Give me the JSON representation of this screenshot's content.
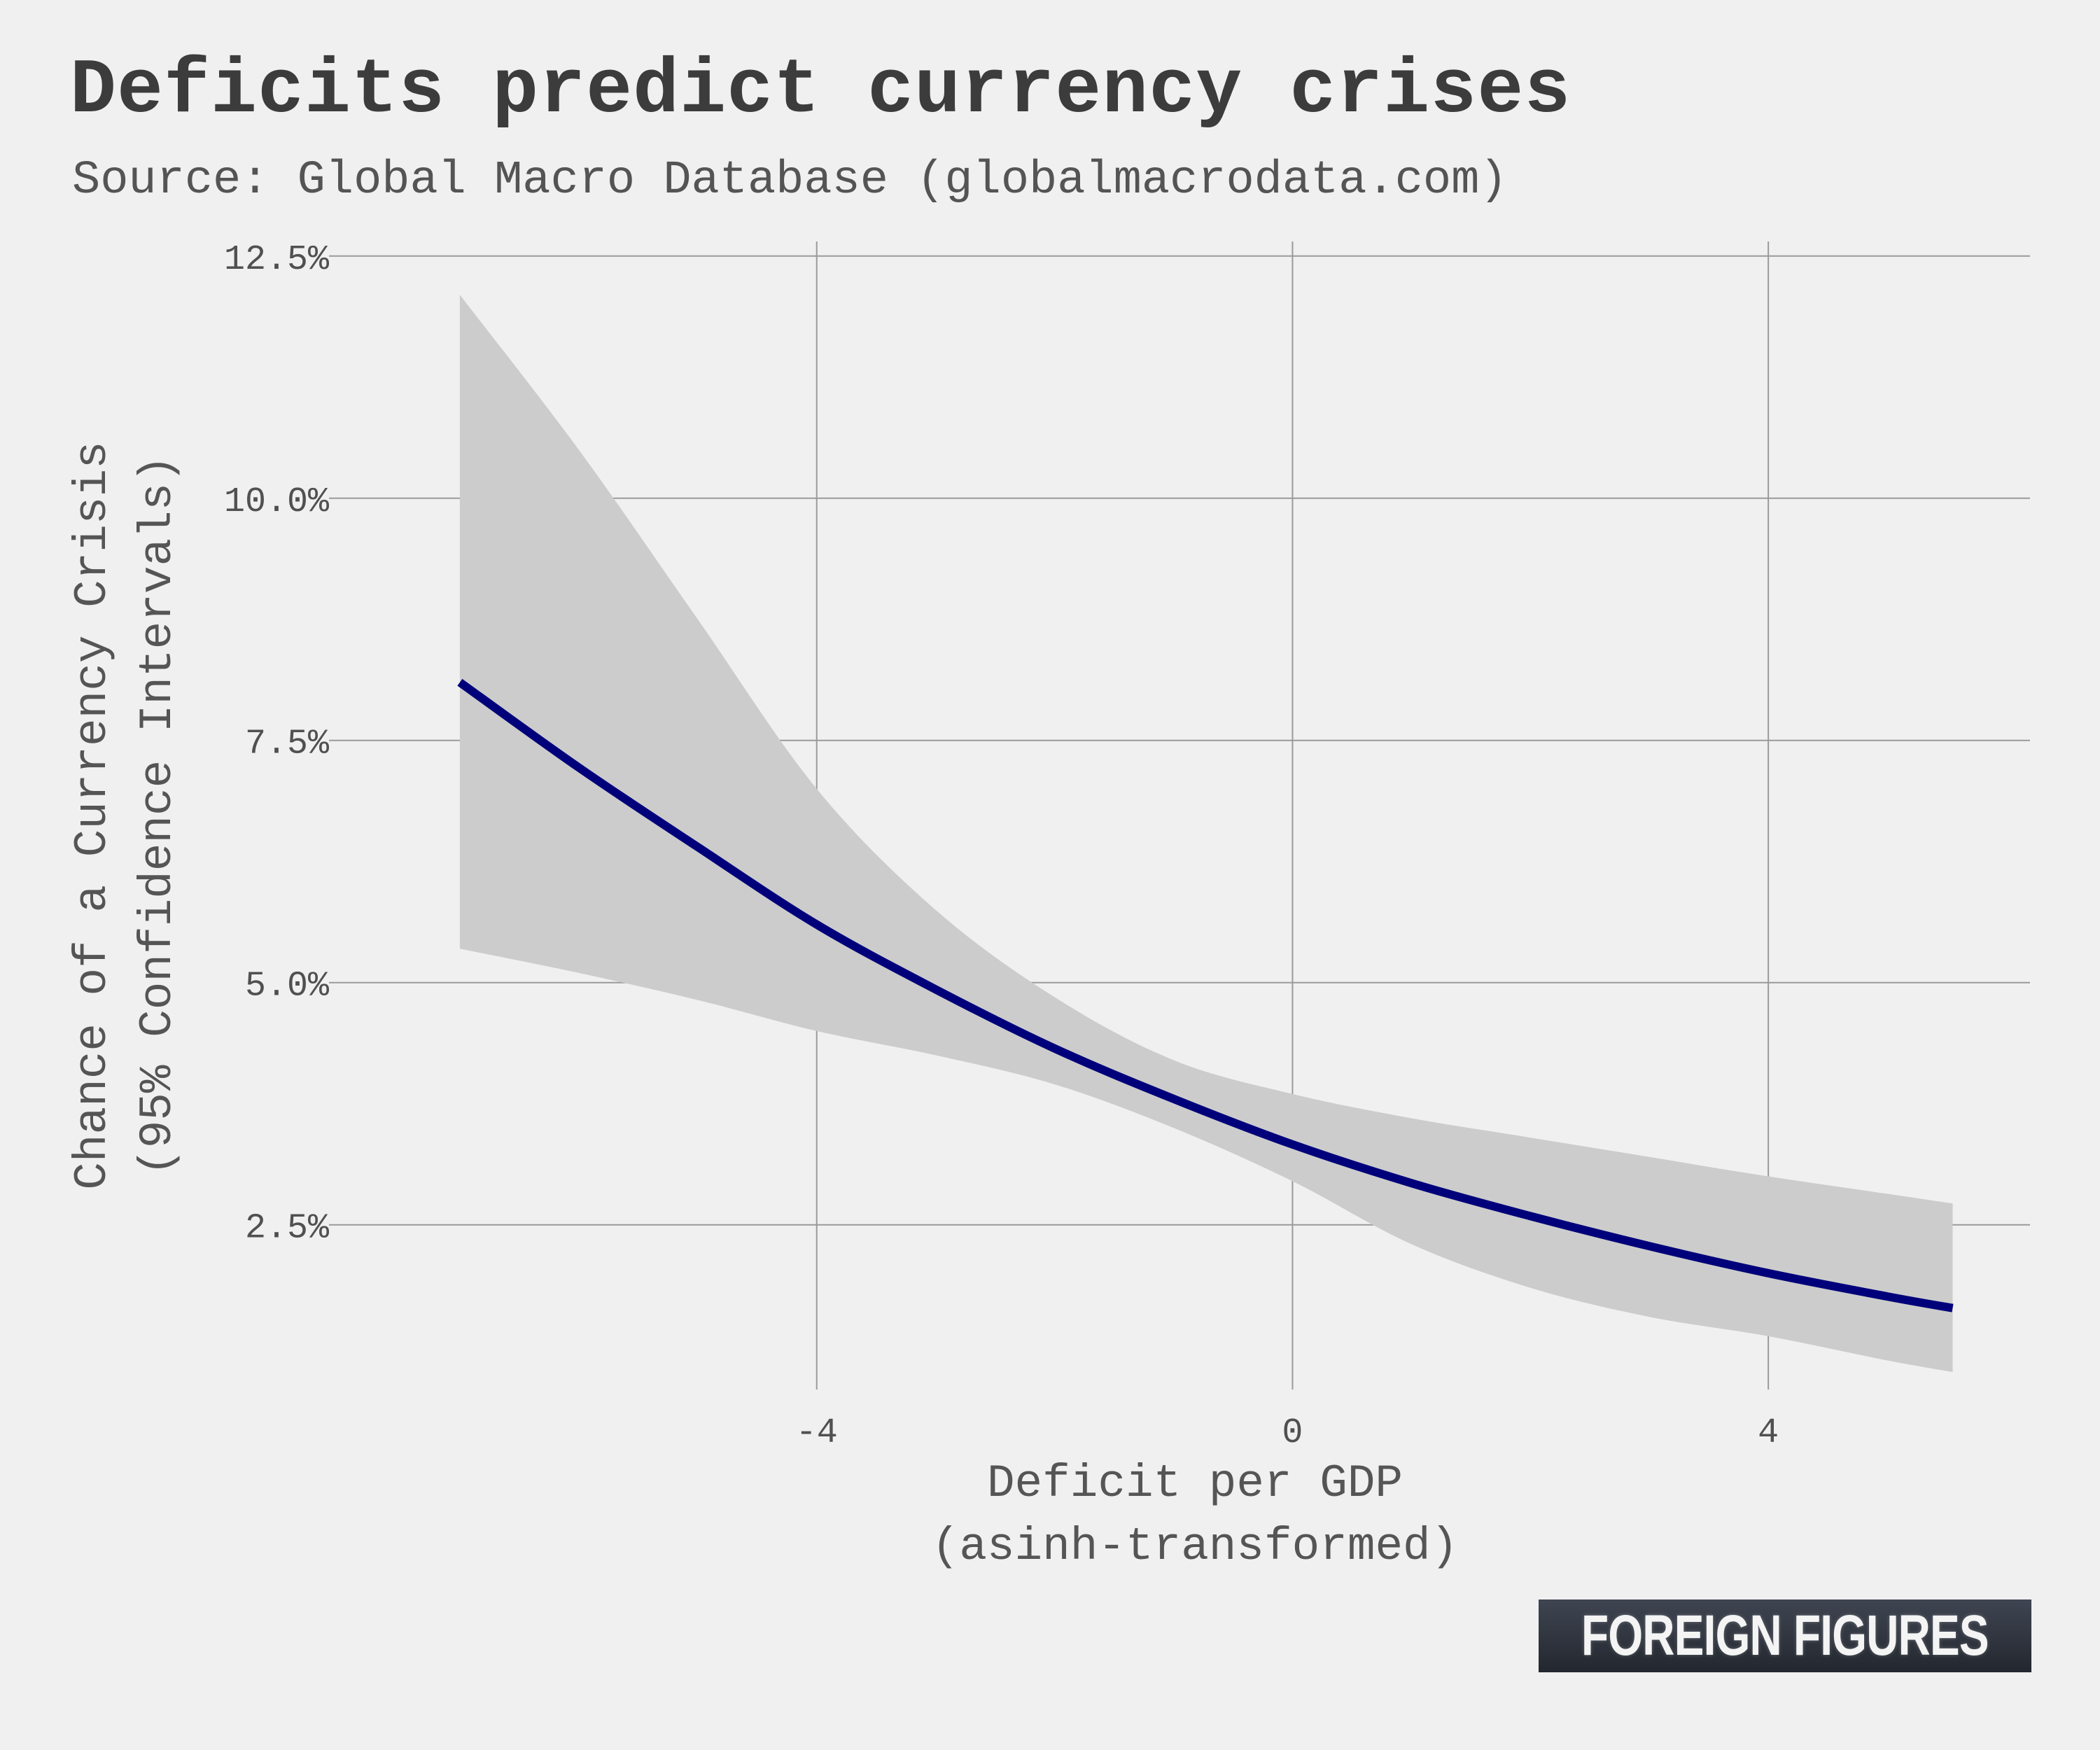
{
  "title": "Deficits predict currency crises",
  "subtitle": "Source: Global Macro Database (globalmacrodata.com)",
  "brand": "FOREIGN FIGURES",
  "colors": {
    "background": "#f0f0f0",
    "line": "#00007a",
    "band": "#cccccc",
    "grid": "#9a9a9a"
  },
  "chart_data": {
    "type": "line",
    "xlabel": [
      "Deficit per GDP",
      "(asinh-transformed)"
    ],
    "ylabel": [
      "Chance of a Currency Crisis",
      "(95% Confidence Intervals)"
    ],
    "xlim": [
      -8.1,
      6.2
    ],
    "ylim": [
      0.8,
      12.65
    ],
    "x_ticks": [
      {
        "value": -4,
        "label": "-4"
      },
      {
        "value": 0,
        "label": "0"
      },
      {
        "value": 4,
        "label": "4"
      }
    ],
    "y_ticks": [
      {
        "value": 2.5,
        "label": "2.5%"
      },
      {
        "value": 5.0,
        "label": "5.0%"
      },
      {
        "value": 7.5,
        "label": "7.5%"
      },
      {
        "value": 10.0,
        "label": "10.0%"
      },
      {
        "value": 12.5,
        "label": "12.5%"
      }
    ],
    "grid": true,
    "legend": "none",
    "x": [
      -7.0,
      -6.0,
      -5.0,
      -4.0,
      -3.0,
      -2.0,
      -1.0,
      0.0,
      1.0,
      2.0,
      3.0,
      4.0,
      5.0,
      5.55
    ],
    "estimate": [
      8.1,
      7.22,
      6.4,
      5.6,
      4.93,
      4.32,
      3.8,
      3.33,
      2.93,
      2.59,
      2.28,
      2.0,
      1.76,
      1.64
    ],
    "ci_upper": [
      12.1,
      10.5,
      8.75,
      7.0,
      5.75,
      4.85,
      4.2,
      3.85,
      3.6,
      3.4,
      3.2,
      3.0,
      2.82,
      2.72
    ],
    "ci_lower": [
      5.35,
      5.1,
      4.82,
      4.5,
      4.25,
      3.95,
      3.5,
      2.95,
      2.3,
      1.85,
      1.55,
      1.35,
      1.1,
      0.98
    ]
  }
}
